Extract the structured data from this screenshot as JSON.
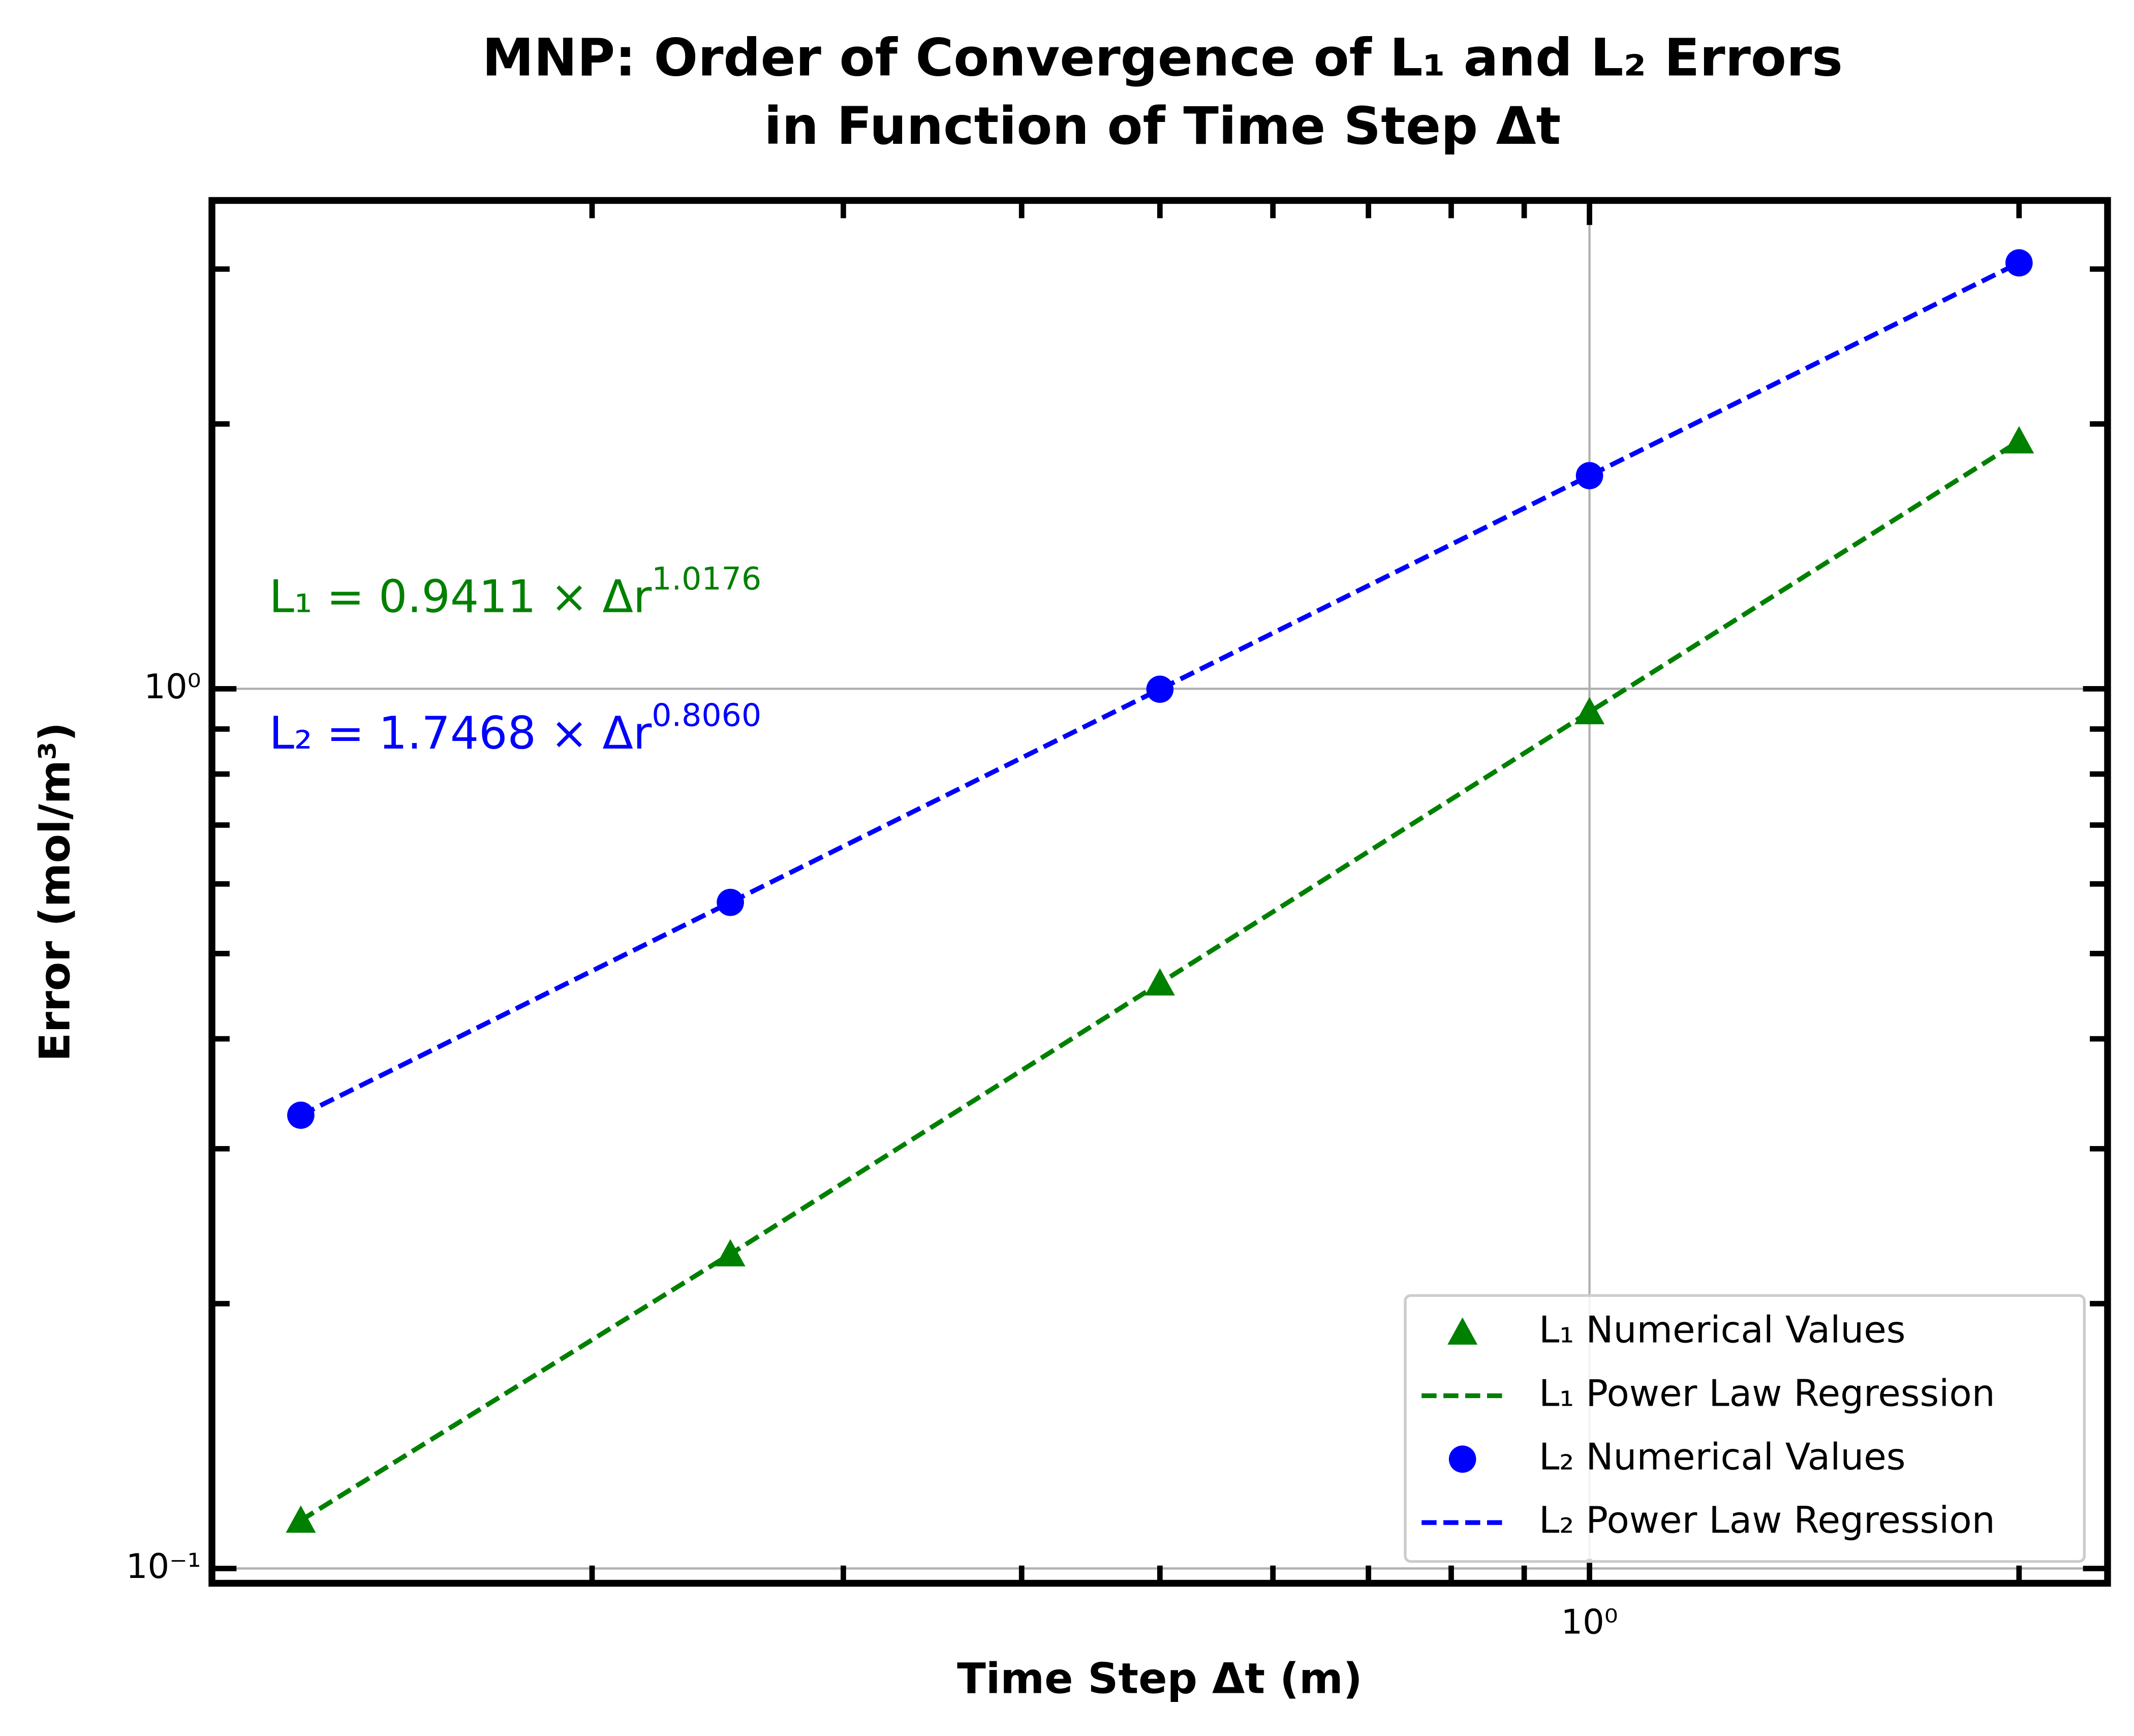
{
  "chart_data": {
    "type": "scatter",
    "title": [
      "MNP: Order of Convergence of L₁ and L₂ Errors",
      "in Function of Time Step Δt"
    ],
    "x_label": "Time Step Δt (m)",
    "y_label": "Error (mol/m³)",
    "x_scale": "log",
    "y_scale": "log",
    "xlim": [
      0.1083,
      2.307
    ],
    "ylim": [
      0.0962,
      3.59
    ],
    "xticks": [
      {
        "value": 1,
        "label": "10⁰"
      }
    ],
    "yticks": [
      {
        "value": 0.1,
        "label": "10⁻¹"
      },
      {
        "value": 1,
        "label": "10⁰"
      }
    ],
    "xminor_ticks": [
      0.2,
      0.3,
      0.4,
      0.5,
      0.6,
      0.7,
      0.8,
      0.9,
      2
    ],
    "yminor_ticks": [
      0.2,
      0.3,
      0.4,
      0.5,
      0.6,
      0.7,
      0.8,
      0.9,
      2,
      3
    ],
    "grid": true,
    "legend": "lower right",
    "series": [
      {
        "name": "L₁ Numerical Values",
        "style": "triangle",
        "color": "#008000",
        "x": [
          0.125,
          0.25,
          0.5,
          1,
          2
        ],
        "values": [
          0.1134,
          0.2277,
          0.4627,
          0.9411,
          1.912
        ]
      },
      {
        "name": "L₁ Power Law Regression",
        "style": "dashed",
        "color": "#008000",
        "x": [
          0.125,
          0.25,
          0.5,
          1,
          2
        ],
        "values": [
          0.1134,
          0.2277,
          0.4627,
          0.9411,
          1.912
        ]
      },
      {
        "name": "L₂ Numerical Values",
        "style": "circle",
        "color": "#0000ff",
        "x": [
          0.125,
          0.25,
          0.5,
          1,
          2
        ],
        "values": [
          0.3275,
          0.5717,
          0.9988,
          1.7468,
          3.049
        ]
      },
      {
        "name": "L₂ Power Law Regression",
        "style": "dashed",
        "color": "#0000ff",
        "x": [
          0.125,
          0.25,
          0.5,
          1,
          2
        ],
        "values": [
          0.3275,
          0.5717,
          0.9988,
          1.7468,
          3.049
        ]
      }
    ],
    "annotations": [
      {
        "text": "L₁ = 0.9411 × Δr",
        "exponent": "1.0176",
        "color": "#008000"
      },
      {
        "text": "L₂ = 1.7468 × Δr",
        "exponent": "0.8060",
        "color": "#0000ff"
      }
    ]
  }
}
